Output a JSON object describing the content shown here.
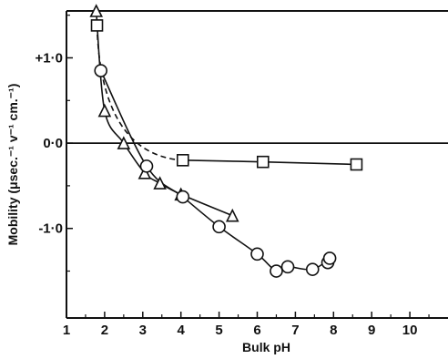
{
  "chart_data": {
    "type": "line",
    "title": "",
    "xlabel": "Bulk pH",
    "ylabel": "Mobility (μsec.⁻¹ v⁻¹ cm.⁻¹)",
    "xlim": [
      1,
      11
    ],
    "ylim": [
      -2.05,
      1.55
    ],
    "grid": false,
    "legend": "none",
    "x_ticks": [
      {
        "value": 1,
        "label": "1"
      },
      {
        "value": 2,
        "label": "2"
      },
      {
        "value": 3,
        "label": "3"
      },
      {
        "value": 4,
        "label": "4"
      },
      {
        "value": 5,
        "label": "5"
      },
      {
        "value": 6,
        "label": "6"
      },
      {
        "value": 7,
        "label": "7"
      },
      {
        "value": 8,
        "label": "8"
      },
      {
        "value": 9,
        "label": "9"
      },
      {
        "value": 10,
        "label": "10"
      }
    ],
    "y_ticks": [
      {
        "value": 1.0,
        "label": "+1·0"
      },
      {
        "value": 0.0,
        "label": "0·0"
      },
      {
        "value": -1.0,
        "label": "-1·0"
      }
    ],
    "reference_line_y": 0,
    "series": [
      {
        "marker": "square",
        "line_style": "dashed-then-solid",
        "x": [
          1.8,
          4.05,
          6.15,
          8.6
        ],
        "y": [
          1.38,
          -0.2,
          -0.22,
          -0.25
        ]
      },
      {
        "marker": "triangle",
        "line_style": "solid",
        "x": [
          1.78,
          2.0,
          2.5,
          3.05,
          3.45,
          4.0,
          5.35
        ],
        "y": [
          1.55,
          0.38,
          0.0,
          -0.35,
          -0.47,
          -0.6,
          -0.85
        ]
      },
      {
        "marker": "circle",
        "line_style": "solid",
        "x": [
          1.9,
          3.1,
          4.05,
          5.0,
          6.0,
          6.5,
          6.8,
          7.45,
          7.85,
          7.9
        ],
        "y": [
          0.85,
          -0.27,
          -0.63,
          -0.98,
          -1.3,
          -1.5,
          -1.45,
          -1.48,
          -1.4,
          -1.35
        ]
      }
    ]
  }
}
